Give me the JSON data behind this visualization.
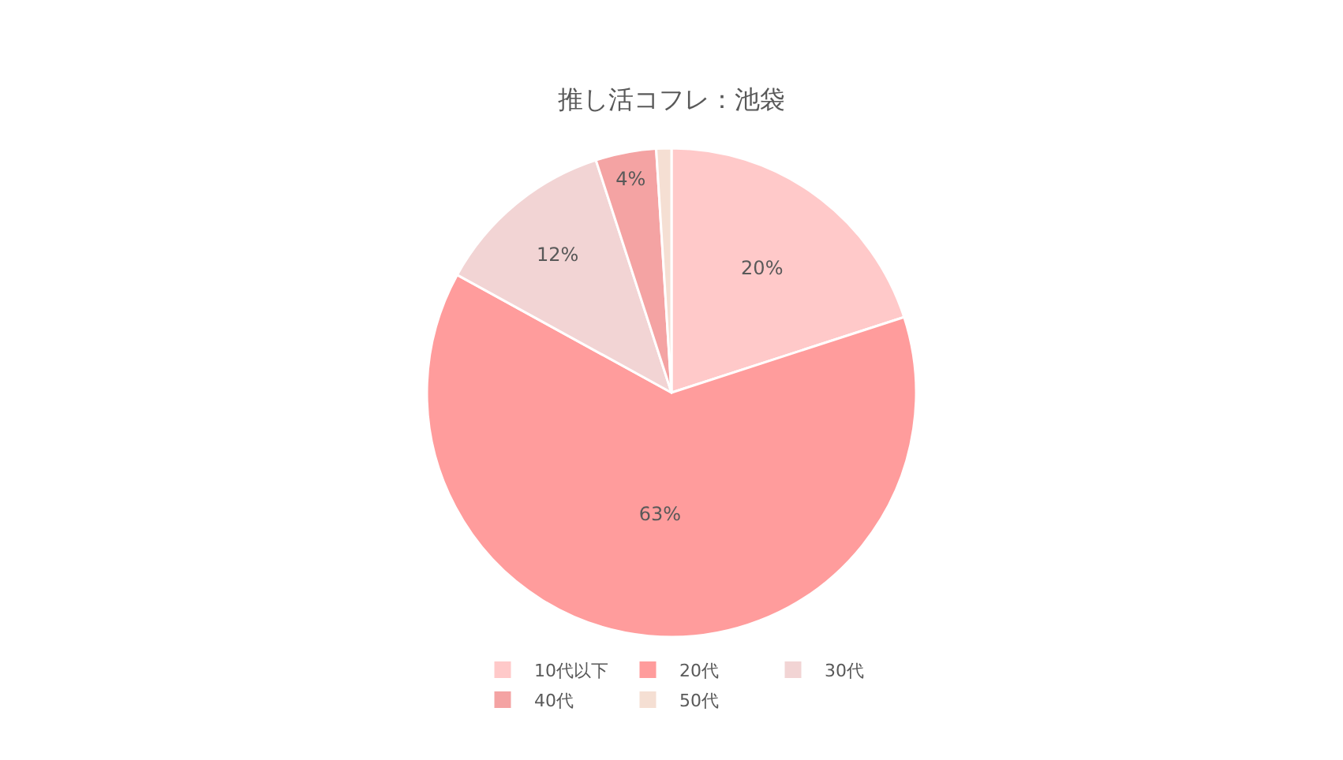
{
  "chart_data": {
    "type": "pie",
    "title": "推し活コフレ：池袋",
    "categories": [
      "10代以下",
      "20代",
      "30代",
      "40代",
      "50代"
    ],
    "values": [
      20,
      63,
      12,
      4,
      1
    ],
    "colors": [
      "#ffc9c9",
      "#ff9c9c",
      "#f2d4d4",
      "#f4a3a3",
      "#f5dfd3"
    ],
    "value_labels": [
      "20%",
      "63%",
      "12%",
      "4%",
      null
    ],
    "legend": "bottom"
  }
}
